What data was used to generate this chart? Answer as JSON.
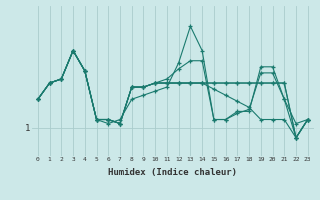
{
  "title": "",
  "xlabel": "Humidex (Indice chaleur)",
  "background_color": "#cce8e8",
  "grid_color": "#aacccc",
  "line_color": "#1a7a6e",
  "hours": [
    0,
    1,
    2,
    3,
    4,
    5,
    6,
    7,
    8,
    9,
    10,
    11,
    12,
    13,
    14,
    15,
    16,
    17,
    18,
    19,
    20,
    21,
    22,
    23
  ],
  "line1": [
    1.7,
    2.1,
    2.2,
    2.9,
    2.4,
    1.2,
    1.1,
    1.2,
    1.7,
    1.8,
    1.9,
    2.0,
    2.6,
    3.5,
    2.9,
    1.2,
    1.2,
    1.4,
    1.4,
    2.5,
    2.5,
    1.7,
    1.1,
    1.2
  ],
  "line2": [
    1.7,
    2.1,
    2.2,
    2.9,
    2.4,
    1.2,
    1.2,
    1.1,
    2.0,
    2.0,
    2.1,
    2.1,
    2.1,
    2.1,
    2.1,
    2.1,
    2.1,
    2.1,
    2.1,
    2.1,
    2.1,
    2.1,
    0.75,
    1.2
  ],
  "line3": [
    1.7,
    2.1,
    2.2,
    2.9,
    2.4,
    1.2,
    1.2,
    1.1,
    2.0,
    2.0,
    2.1,
    2.1,
    2.1,
    2.1,
    2.1,
    1.95,
    1.8,
    1.65,
    1.5,
    1.2,
    1.2,
    1.2,
    0.75,
    1.2
  ],
  "line4": [
    1.7,
    2.1,
    2.2,
    2.9,
    2.4,
    1.2,
    1.2,
    1.1,
    2.0,
    2.0,
    2.1,
    2.2,
    2.45,
    2.65,
    2.65,
    1.2,
    1.2,
    1.35,
    1.45,
    2.35,
    2.35,
    1.7,
    0.75,
    1.2
  ],
  "line5": [
    1.7,
    2.1,
    2.2,
    2.9,
    2.4,
    1.2,
    1.2,
    1.1,
    2.0,
    2.0,
    2.1,
    2.1,
    2.1,
    2.1,
    2.1,
    2.1,
    2.1,
    2.1,
    2.1,
    2.1,
    2.1,
    2.1,
    0.75,
    1.2
  ],
  "ytick_val": 1.0,
  "ytick_label": "1",
  "ylim_low": 0.3,
  "ylim_high": 4.0,
  "xlim_low": -0.5,
  "xlim_high": 23.5
}
